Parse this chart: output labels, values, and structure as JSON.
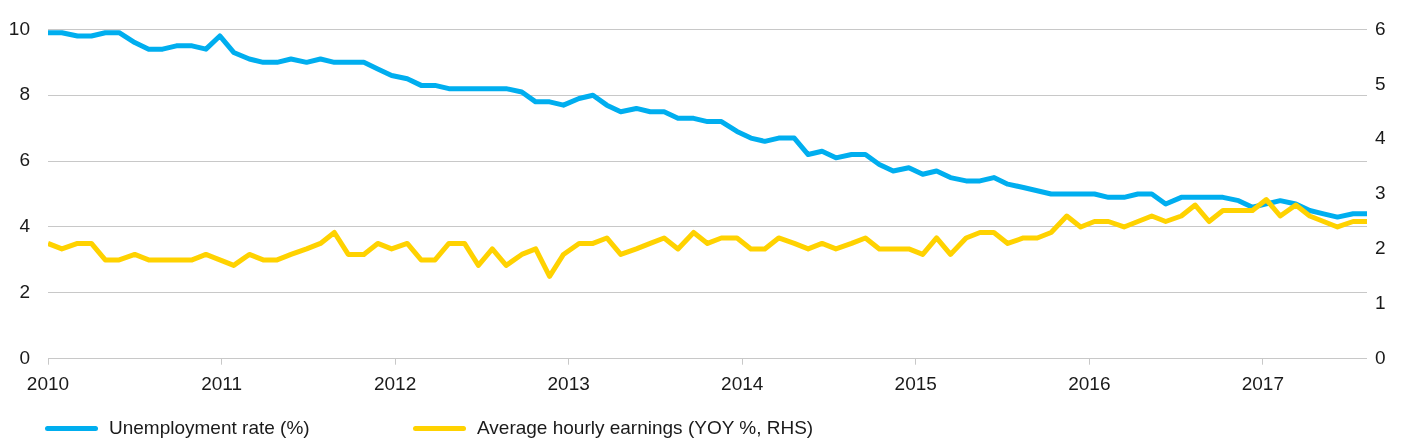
{
  "chart_data": {
    "type": "line",
    "x": [
      2010.0,
      2010.08,
      2010.17,
      2010.25,
      2010.33,
      2010.41,
      2010.5,
      2010.58,
      2010.66,
      2010.74,
      2010.83,
      2010.91,
      2010.99,
      2011.07,
      2011.16,
      2011.24,
      2011.32,
      2011.4,
      2011.49,
      2011.57,
      2011.65,
      2011.73,
      2011.82,
      2011.9,
      2011.98,
      2012.07,
      2012.15,
      2012.23,
      2012.31,
      2012.4,
      2012.48,
      2012.56,
      2012.64,
      2012.73,
      2012.81,
      2012.89,
      2012.97,
      2013.06,
      2013.14,
      2013.22,
      2013.3,
      2013.39,
      2013.47,
      2013.55,
      2013.63,
      2013.72,
      2013.8,
      2013.88,
      2013.97,
      2014.05,
      2014.13,
      2014.21,
      2014.3,
      2014.38,
      2014.46,
      2014.54,
      2014.63,
      2014.71,
      2014.79,
      2014.87,
      2014.96,
      2015.04,
      2015.12,
      2015.2,
      2015.29,
      2015.37,
      2015.45,
      2015.53,
      2015.62,
      2015.7,
      2015.78,
      2015.87,
      2015.95,
      2016.03,
      2016.11,
      2016.2,
      2016.28,
      2016.36,
      2016.44,
      2016.53,
      2016.61,
      2016.69,
      2016.77,
      2016.86,
      2016.94,
      2017.02,
      2017.1,
      2017.19,
      2017.27,
      2017.35,
      2017.43,
      2017.52,
      2017.6
    ],
    "xlim": [
      2010,
      2017.6
    ],
    "xticks": [
      2010,
      2011,
      2012,
      2013,
      2014,
      2015,
      2016,
      2017
    ],
    "ylim": [
      0,
      10
    ],
    "yticks": [
      0,
      2,
      4,
      6,
      8,
      10
    ],
    "y2lim": [
      0,
      6
    ],
    "y2ticks": [
      0,
      1,
      2,
      3,
      4,
      5,
      6
    ],
    "grid": "y",
    "legend": "bottom left",
    "series": [
      {
        "name": "Unemployment rate (%)",
        "color": "#00aeef",
        "values": [
          9.9,
          9.9,
          9.8,
          9.8,
          9.9,
          9.9,
          9.6,
          9.4,
          9.4,
          9.5,
          9.5,
          9.4,
          9.8,
          9.3,
          9.1,
          9.0,
          9.0,
          9.1,
          9.0,
          9.1,
          9.0,
          9.0,
          9.0,
          8.8,
          8.6,
          8.5,
          8.3,
          8.3,
          8.2,
          8.2,
          8.2,
          8.2,
          8.2,
          8.1,
          7.8,
          7.8,
          7.7,
          7.9,
          8.0,
          7.7,
          7.5,
          7.6,
          7.5,
          7.5,
          7.3,
          7.3,
          7.2,
          7.2,
          6.9,
          6.7,
          6.6,
          6.7,
          6.7,
          6.2,
          6.3,
          6.1,
          6.2,
          6.2,
          5.9,
          5.7,
          5.8,
          5.6,
          5.7,
          5.5,
          5.4,
          5.4,
          5.5,
          5.3,
          5.2,
          5.1,
          5.0,
          5.0,
          5.0,
          5.0,
          4.9,
          4.9,
          5.0,
          5.0,
          4.7,
          4.9,
          4.9,
          4.9,
          4.9,
          4.8,
          4.6,
          4.7,
          4.8,
          4.7,
          4.5,
          4.4,
          4.3,
          4.4,
          4.4
        ]
      },
      {
        "name": "Average hourly earnings (YOY %, RHS)",
        "color": "#ffd200",
        "axis": "y2",
        "values": [
          2.1,
          2.0,
          2.1,
          2.1,
          1.8,
          1.8,
          1.9,
          1.8,
          1.8,
          1.8,
          1.8,
          1.9,
          1.8,
          1.7,
          1.9,
          1.8,
          1.8,
          1.9,
          2.0,
          2.1,
          2.3,
          1.9,
          1.9,
          2.1,
          2.0,
          2.1,
          1.8,
          1.8,
          2.1,
          2.1,
          1.7,
          2.0,
          1.7,
          1.9,
          2.0,
          1.5,
          1.9,
          2.1,
          2.1,
          2.2,
          1.9,
          2.0,
          2.1,
          2.2,
          2.0,
          2.3,
          2.1,
          2.2,
          2.2,
          2.0,
          2.0,
          2.2,
          2.1,
          2.0,
          2.1,
          2.0,
          2.1,
          2.2,
          2.0,
          2.0,
          2.0,
          1.9,
          2.2,
          1.9,
          2.2,
          2.3,
          2.3,
          2.1,
          2.2,
          2.2,
          2.3,
          2.6,
          2.4,
          2.5,
          2.5,
          2.4,
          2.5,
          2.6,
          2.5,
          2.6,
          2.8,
          2.5,
          2.7,
          2.7,
          2.7,
          2.9,
          2.6,
          2.8,
          2.6,
          2.5,
          2.4,
          2.5,
          2.5
        ]
      }
    ]
  }
}
